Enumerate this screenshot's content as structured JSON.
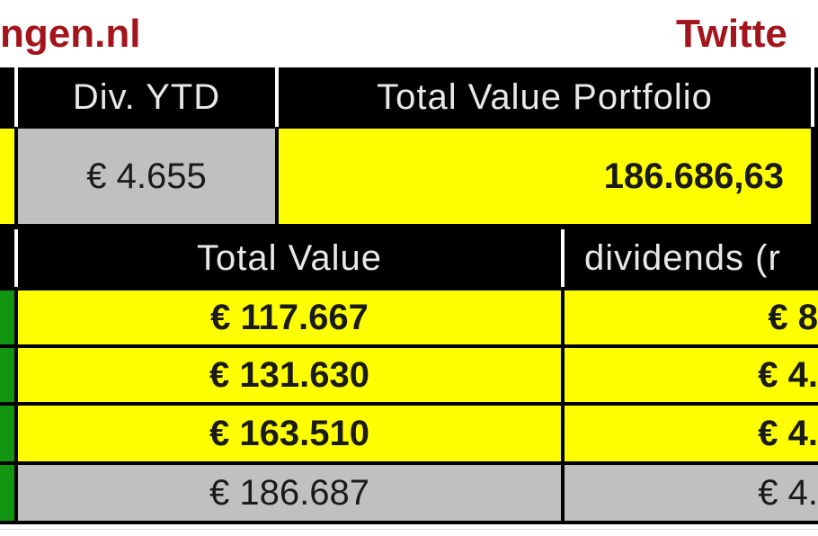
{
  "header": {
    "site_fragment": "ngen.nl",
    "twitter_fragment": "Twitte"
  },
  "summary": {
    "div_ytd_label": "Div. YTD",
    "div_ytd_value": "€ 4.655",
    "total_value_portfolio_label": "Total Value Portfolio",
    "total_value_portfolio_value": "186.686,63"
  },
  "table": {
    "columns": [
      "Total Value",
      "dividends (r"
    ],
    "rows": [
      {
        "total_value": "€ 117.667",
        "dividends": "€ 8",
        "style": "yellow"
      },
      {
        "total_value": "€ 131.630",
        "dividends": "€ 4.",
        "style": "yellow"
      },
      {
        "total_value": "€ 163.510",
        "dividends": "€ 4.",
        "style": "yellow"
      },
      {
        "total_value": "€ 186.687",
        "dividends": "€ 4.",
        "style": "grey"
      }
    ]
  },
  "colors": {
    "header_bg": "#000000",
    "highlight": "#ffff00",
    "neutral": "#c0c0c0",
    "accent_green": "#129612",
    "brand_red": "#a3151c"
  }
}
